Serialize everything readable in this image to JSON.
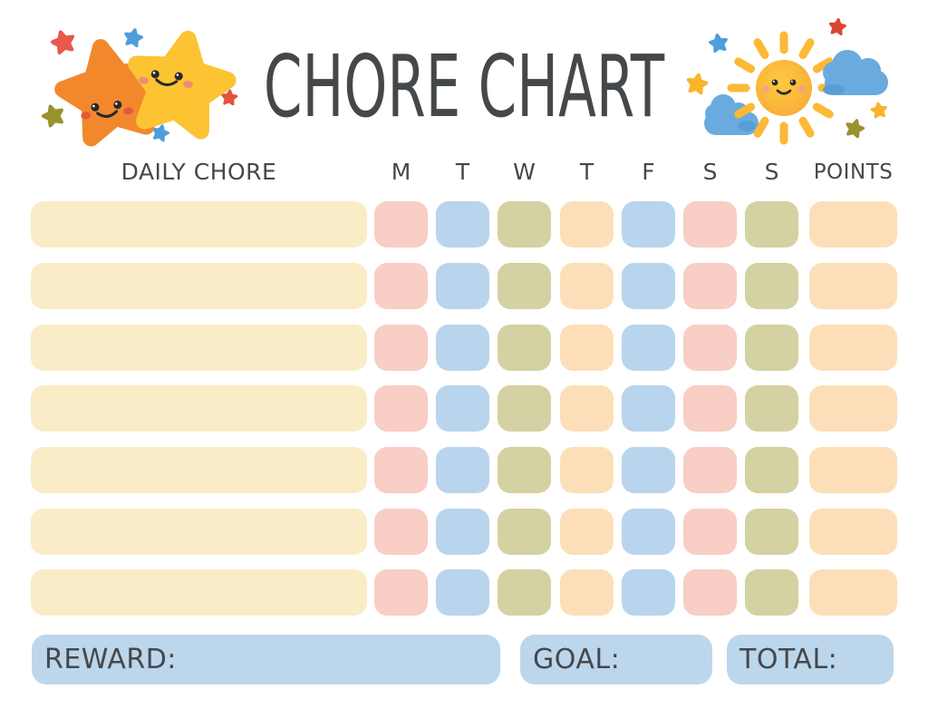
{
  "title": "CHORE CHART",
  "table": {
    "chore_header": "DAILY CHORE",
    "day_headers": [
      "M",
      "T",
      "W",
      "T",
      "F",
      "S",
      "S"
    ],
    "points_header": "POINTS",
    "row_count": 7
  },
  "footer": {
    "reward_label": "REWARD:",
    "goal_label": "GOAL:",
    "total_label": "TOTAL:"
  },
  "colors": {
    "text": "#45484B",
    "chore_bar": "#FAECC6",
    "day_cell_colors": [
      "#F8CEC5",
      "#B9D4ED",
      "#D4D1A2",
      "#FCDFB8",
      "#B9D4ED",
      "#F8CEC5",
      "#D4D1A2"
    ],
    "points_cell": "#FCDFB8",
    "footer_bar": "#BCD6EC"
  },
  "decorations": {
    "left": "smiling-stars-icon",
    "right": "sun-and-clouds-icon"
  }
}
